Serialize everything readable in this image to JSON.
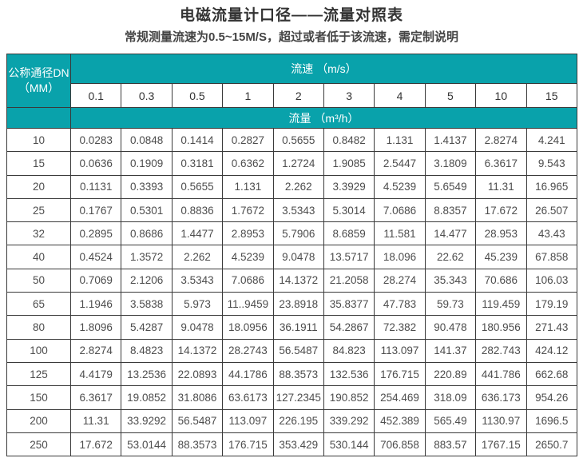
{
  "page": {
    "title": "电磁流量计口径——流量对照表",
    "subtitle": "常规测量流速为0.5~15M/S，超过或者低于该流速，需定制说明"
  },
  "table": {
    "corner_header_line1": "公称通径DN",
    "corner_header_line2": "（MM）",
    "velocity_header": "流速 （m/s）",
    "flow_header": "流量 （m³/h）",
    "velocities": [
      "0.1",
      "0.3",
      "0.5",
      "1",
      "2",
      "3",
      "4",
      "5",
      "10",
      "15"
    ],
    "rows": [
      {
        "dn": "10",
        "values": [
          "0.0283",
          "0.0848",
          "0.1414",
          "0.2827",
          "0.5655",
          "0.8482",
          "1.131",
          "1.4137",
          "2.8274",
          "4.241"
        ]
      },
      {
        "dn": "15",
        "values": [
          "0.0636",
          "0.1909",
          "0.3181",
          "0.6362",
          "1.2724",
          "1.9085",
          "2.5447",
          "3.1809",
          "6.3617",
          "9.543"
        ]
      },
      {
        "dn": "20",
        "values": [
          "0.1131",
          "0.3393",
          "0.5655",
          "1.131",
          "2.262",
          "3.3929",
          "4.5239",
          "5.6549",
          "11.31",
          "16.965"
        ]
      },
      {
        "dn": "25",
        "values": [
          "0.1767",
          "0.5301",
          "0.8836",
          "1.7672",
          "3.5343",
          "5.3014",
          "7.0686",
          "8.8357",
          "17.672",
          "26.507"
        ]
      },
      {
        "dn": "32",
        "values": [
          "0.2895",
          "0.8686",
          "1.4477",
          "2.8953",
          "5.7906",
          "8.6859",
          "11.581",
          "14.477",
          "28.953",
          "43.43"
        ]
      },
      {
        "dn": "40",
        "values": [
          "0.4524",
          "1.3572",
          "2.262",
          "4.5239",
          "9.0478",
          "13.5717",
          "18.096",
          "22.62",
          "45.239",
          "67.858"
        ]
      },
      {
        "dn": "50",
        "values": [
          "0.7069",
          "2.1206",
          "3.5343",
          "7.0686",
          "14.1372",
          "21.2058",
          "28.274",
          "35.343",
          "70.686",
          "106.03"
        ]
      },
      {
        "dn": "65",
        "values": [
          "1.1946",
          "3.5838",
          "5.973",
          "11..9459",
          "23.8918",
          "35.8377",
          "47.783",
          "59.73",
          "119.459",
          "179.19"
        ]
      },
      {
        "dn": "80",
        "values": [
          "1.8096",
          "5.4287",
          "9.0478",
          "18.0956",
          "36.1911",
          "54.2867",
          "72.382",
          "90.478",
          "180.956",
          "271.43"
        ]
      },
      {
        "dn": "100",
        "values": [
          "2.8274",
          "8.4823",
          "14.1372",
          "28.2743",
          "56.5487",
          "84.823",
          "113.097",
          "141.37",
          "282.743",
          "424.12"
        ]
      },
      {
        "dn": "125",
        "values": [
          "4.4179",
          "13.2536",
          "22.0893",
          "44.1786",
          "88.3573",
          "132.536",
          "176.715",
          "220.89",
          "441.786",
          "662.68"
        ]
      },
      {
        "dn": "150",
        "values": [
          "6.3617",
          "19.0852",
          "31.8086",
          "63.6173",
          "127.2345",
          "190.852",
          "254.469",
          "318.09",
          "636.173",
          "954.26"
        ]
      },
      {
        "dn": "200",
        "values": [
          "11.31",
          "33.9292",
          "56.5487",
          "113.097",
          "226.195",
          "339.292",
          "452.389",
          "565.49",
          "1130.97",
          "1696.5"
        ]
      },
      {
        "dn": "250",
        "values": [
          "17.672",
          "53.0144",
          "88.3573",
          "176.715",
          "353.429",
          "530.144",
          "706.858",
          "883.57",
          "1767.15",
          "2650.7"
        ]
      }
    ]
  },
  "colors": {
    "teal": "#09a2ab",
    "border": "#3a3a3a",
    "text_dark": "#333333",
    "text_gray": "#4d4d4d"
  }
}
